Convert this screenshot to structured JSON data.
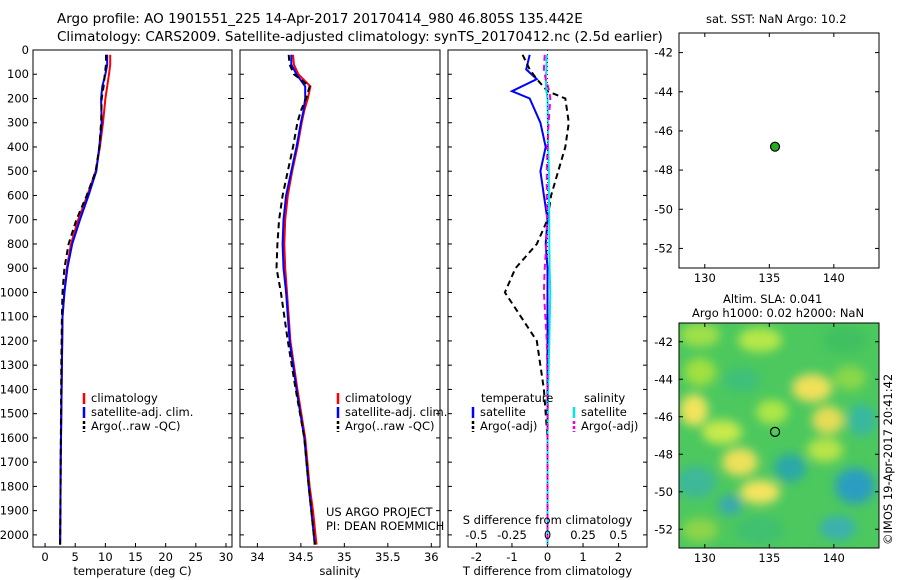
{
  "header": {
    "line1": "Argo profile: AO 1901551_225 14-Apr-2017 20170414_980 46.805S 135.442E",
    "line2": "Climatology: CARS2009. Satellite-adjusted climatology: synTS_20170412.nc (2.5d earlier)"
  },
  "credit": "©IMOS 19-Apr-2017 20:41:42",
  "colors": {
    "climatology": "#ff0000",
    "satellite": "#0000ff",
    "argo": "#000000",
    "sal_satellite": "#00e5ee",
    "sal_argo": "#ee00ee",
    "marker": "#22aa22"
  },
  "chart_data": [
    {
      "id": "temperature",
      "type": "line",
      "xlabel": "temperature (deg C)",
      "xlim": [
        -2,
        31
      ],
      "ylim": [
        0,
        2050
      ],
      "y_reversed": true,
      "xticks": [
        0,
        5,
        10,
        15,
        20,
        25,
        30
      ],
      "yticks": [
        0,
        100,
        200,
        300,
        400,
        500,
        600,
        700,
        800,
        900,
        1000,
        1100,
        1200,
        1300,
        1400,
        1500,
        1600,
        1700,
        1800,
        1900,
        2000
      ],
      "legend": [
        "climatology",
        "satellite-adj. clim.",
        "Argo(..raw -QC)"
      ],
      "series": [
        {
          "name": "climatology",
          "style": "solid",
          "color": "#ff0000",
          "x": [
            10.8,
            10.8,
            10.6,
            10.3,
            10.0,
            9.6,
            9.1,
            8.4,
            7.0,
            5.5,
            4.3,
            3.6,
            3.2,
            2.9,
            2.8,
            2.7,
            2.6,
            2.55,
            2.5
          ],
          "y": [
            20,
            60,
            100,
            150,
            200,
            300,
            400,
            500,
            600,
            700,
            800,
            900,
            1000,
            1100,
            1300,
            1500,
            1700,
            1900,
            2040
          ]
        },
        {
          "name": "satellite-adj. clim.",
          "style": "solid",
          "color": "#0000ff",
          "x": [
            10.3,
            10.3,
            10.0,
            9.5,
            9.3,
            9.4,
            9.0,
            8.5,
            7.2,
            5.8,
            4.5,
            3.7,
            3.2,
            2.9,
            2.8,
            2.7,
            2.6,
            2.55,
            2.5
          ],
          "y": [
            20,
            60,
            100,
            150,
            200,
            300,
            400,
            500,
            600,
            700,
            800,
            900,
            1000,
            1100,
            1300,
            1500,
            1700,
            1900,
            2040
          ]
        },
        {
          "name": "Argo(..raw -QC)",
          "style": "dashed",
          "color": "#000000",
          "x": [
            10.1,
            10.1,
            9.9,
            9.7,
            9.4,
            9.3,
            9.0,
            8.4,
            6.9,
            5.2,
            3.9,
            3.2,
            2.9,
            2.8,
            2.7,
            2.65,
            2.6,
            2.55,
            2.5
          ],
          "y": [
            20,
            60,
            100,
            150,
            200,
            300,
            400,
            500,
            600,
            700,
            800,
            900,
            1000,
            1100,
            1300,
            1500,
            1700,
            1900,
            2040
          ]
        }
      ]
    },
    {
      "id": "salinity",
      "type": "line",
      "xlabel": "salinity",
      "xlim": [
        33.8,
        36.1
      ],
      "ylim": [
        0,
        2050
      ],
      "y_reversed": true,
      "xticks": [
        34,
        34.5,
        35,
        35.5,
        36
      ],
      "xticklabels": [
        "34",
        "34.5",
        "35",
        "35.5",
        "36"
      ],
      "legend": [
        "climatology",
        "satellite-adj. clim.",
        "Argo(..raw -QC)"
      ],
      "annotation": [
        "US ARGO PROJECT",
        "PI: DEAN ROEMMICH"
      ],
      "series": [
        {
          "name": "climatology",
          "style": "solid",
          "color": "#ff0000",
          "x": [
            34.41,
            34.42,
            34.47,
            34.61,
            34.58,
            34.54,
            34.51,
            34.46,
            34.4,
            34.35,
            34.32,
            34.31,
            34.32,
            34.34,
            34.38,
            34.46,
            34.55,
            34.6,
            34.64,
            34.68
          ],
          "y": [
            20,
            60,
            100,
            150,
            200,
            250,
            300,
            400,
            500,
            600,
            700,
            800,
            900,
            1000,
            1200,
            1400,
            1600,
            1800,
            1900,
            2040
          ]
        },
        {
          "name": "satellite-adj. clim.",
          "style": "solid",
          "color": "#0000ff",
          "x": [
            34.39,
            34.39,
            34.45,
            34.55,
            34.55,
            34.53,
            34.5,
            34.45,
            34.39,
            34.33,
            34.3,
            34.29,
            34.3,
            34.33,
            34.37,
            34.45,
            34.54,
            34.59,
            34.62,
            34.66
          ],
          "y": [
            20,
            60,
            100,
            150,
            200,
            250,
            300,
            400,
            500,
            600,
            700,
            800,
            900,
            1000,
            1200,
            1400,
            1600,
            1800,
            1900,
            2040
          ]
        },
        {
          "name": "Argo(..raw -QC)",
          "style": "dashed",
          "color": "#000000",
          "x": [
            34.36,
            34.37,
            34.42,
            34.6,
            34.56,
            34.5,
            34.46,
            34.41,
            34.35,
            34.29,
            34.25,
            34.23,
            34.22,
            34.27,
            34.35,
            34.44,
            34.54,
            34.59,
            34.62,
            34.66
          ],
          "y": [
            20,
            60,
            100,
            150,
            200,
            250,
            300,
            400,
            500,
            600,
            700,
            800,
            900,
            1000,
            1200,
            1400,
            1600,
            1800,
            1900,
            2040
          ]
        }
      ]
    },
    {
      "id": "difference",
      "type": "line",
      "xlabel": "T difference from climatology",
      "xlabel2": "S difference from climatology",
      "xlim": [
        -2.8,
        2.8
      ],
      "ylim": [
        0,
        2050
      ],
      "y_reversed": true,
      "xticks": [
        -2,
        -1,
        0,
        1,
        2
      ],
      "xticks_s": [
        -0.5,
        -0.25,
        0,
        0.25,
        0.5
      ],
      "xticklabels_s": [
        "-0.5",
        "-0.25",
        "0",
        "0.25",
        "0.5"
      ],
      "legend": {
        "temperature": "temperature",
        "salinity": "salinity",
        "t_satellite": "satellite",
        "t_argo": "Argo(-adj)",
        "s_satellite": "satellite",
        "s_argo": "Argo(-adj)"
      },
      "series": [
        {
          "name": "T satellite",
          "style": "solid",
          "color": "#0000ff",
          "x": [
            -0.5,
            -0.6,
            -0.3,
            -1.0,
            -0.5,
            -0.2,
            -0.05,
            -0.2,
            -0.1,
            0.0,
            -0.05,
            0.0,
            0.0,
            0.0,
            0.0,
            0.0,
            0.0,
            0.0
          ],
          "y": [
            20,
            80,
            120,
            170,
            200,
            300,
            400,
            500,
            600,
            700,
            800,
            900,
            1000,
            1200,
            1400,
            1600,
            1800,
            2040
          ]
        },
        {
          "name": "T Argo(-adj)",
          "style": "dashed",
          "color": "#000000",
          "x": [
            -0.7,
            -0.5,
            -0.3,
            0.0,
            0.5,
            0.6,
            0.5,
            0.3,
            0.1,
            0.0,
            -0.3,
            -0.9,
            -1.2,
            -0.3,
            -0.1,
            0.0,
            0.0,
            0.0
          ],
          "y": [
            20,
            80,
            120,
            170,
            200,
            300,
            400,
            500,
            600,
            700,
            800,
            900,
            1000,
            1200,
            1400,
            1600,
            1800,
            2040
          ]
        },
        {
          "name": "S satellite",
          "style": "solid",
          "color": "#00e5ee",
          "x": [
            -0.02,
            -0.03,
            -0.05,
            -0.03,
            0.0,
            0.01,
            0.02,
            0.04,
            0.04,
            0.05,
            0.05,
            0.06,
            0.08,
            0.05,
            0.02,
            0.0,
            0.0,
            0.0
          ],
          "y": [
            20,
            80,
            120,
            170,
            200,
            300,
            400,
            500,
            600,
            700,
            800,
            900,
            1000,
            1200,
            1400,
            1600,
            1800,
            2040
          ]
        },
        {
          "name": "S Argo(-adj)",
          "style": "dashed",
          "color": "#ee00ee",
          "x": [
            -0.08,
            -0.1,
            -0.05,
            0.05,
            0.08,
            0.03,
            0.0,
            -0.02,
            -0.02,
            -0.01,
            -0.03,
            -0.08,
            -0.1,
            -0.02,
            0.0,
            0.0,
            0.0,
            0.0
          ],
          "y": [
            20,
            80,
            120,
            170,
            200,
            300,
            400,
            500,
            600,
            700,
            800,
            900,
            1000,
            1200,
            1400,
            1600,
            1800,
            2040
          ]
        }
      ]
    },
    {
      "id": "map_sst",
      "type": "scatter",
      "title": "sat. SST: NaN Argo: 10.2",
      "xlim": [
        128,
        143.5
      ],
      "ylim": [
        -53,
        -41
      ],
      "xticks": [
        130,
        135,
        140
      ],
      "yticks": [
        -42,
        -44,
        -46,
        -48,
        -50,
        -52
      ],
      "points": [
        {
          "x": 135.442,
          "y": -46.805
        }
      ]
    },
    {
      "id": "map_sla",
      "type": "heatmap",
      "title_line1": "Altim. SLA: 0.041",
      "title_line2": "Argo h1000: 0.02 h2000: NaN",
      "xlim": [
        128,
        143.5
      ],
      "ylim": [
        -53,
        -41
      ],
      "xticks": [
        130,
        135,
        140
      ],
      "yticks": [
        -42,
        -44,
        -46,
        -48,
        -50,
        -52
      ],
      "points": [
        {
          "x": 135.442,
          "y": -46.805
        }
      ]
    }
  ]
}
